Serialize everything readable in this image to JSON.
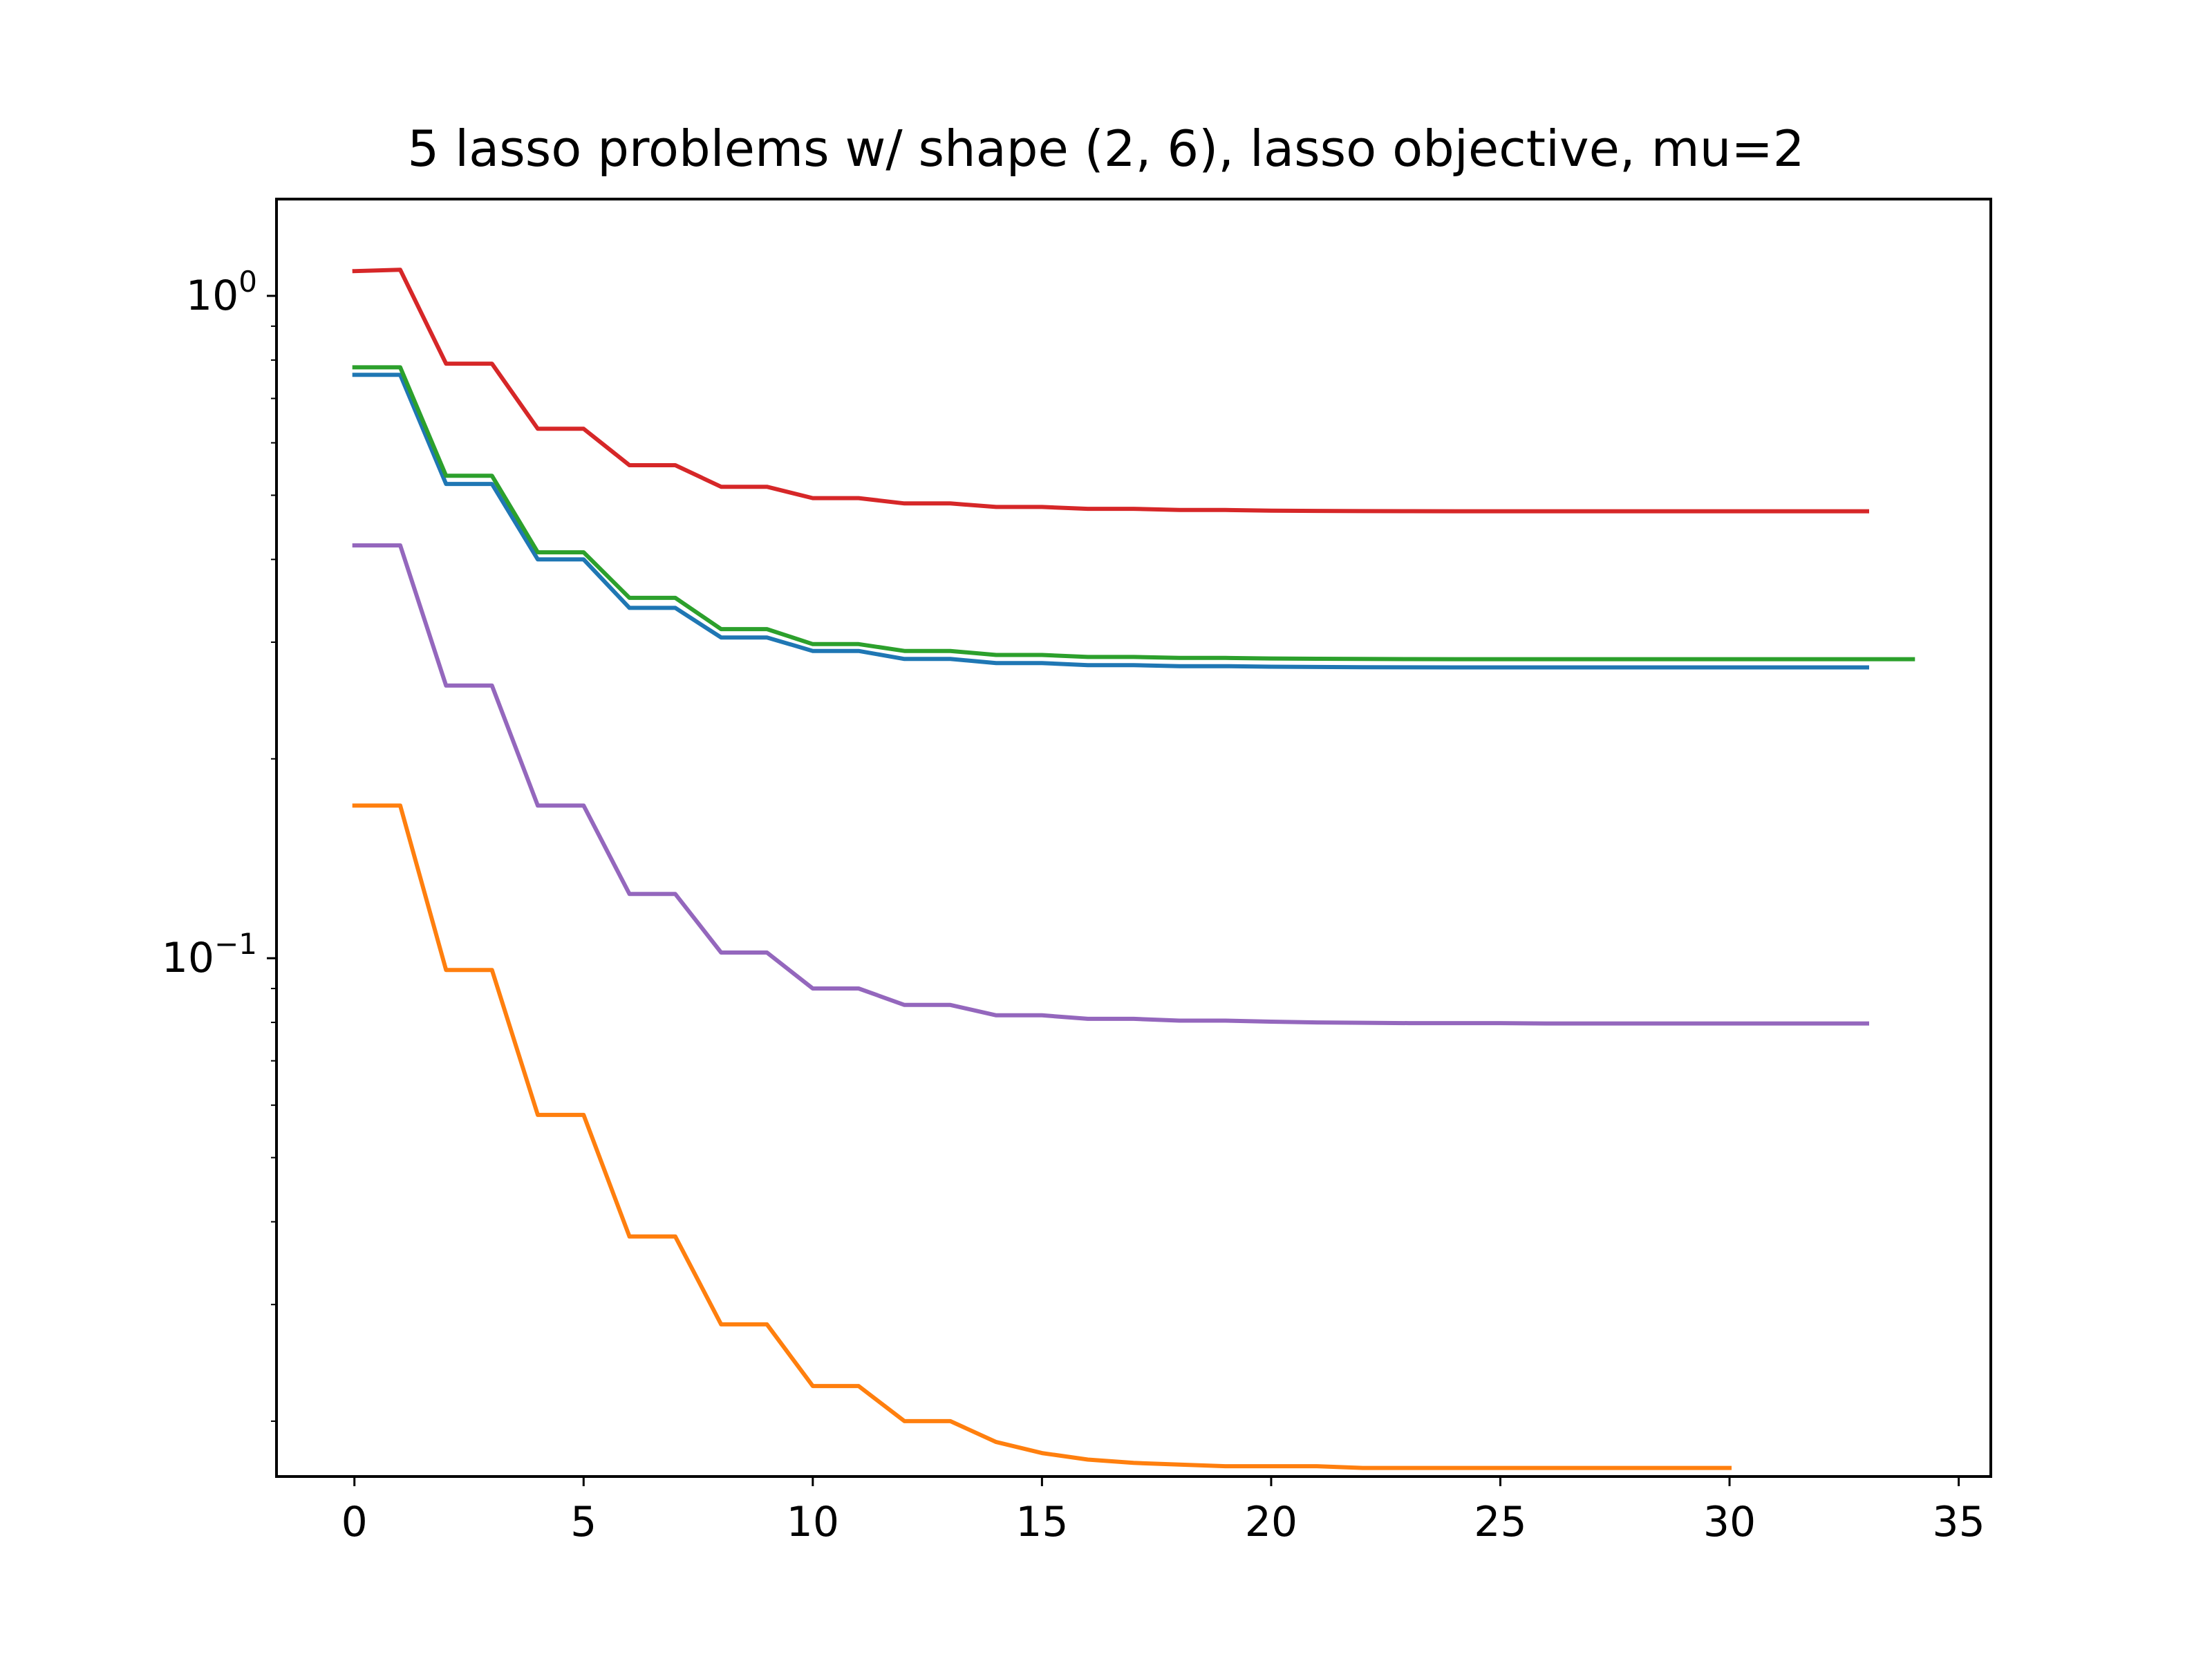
{
  "chart_data": {
    "type": "line",
    "title": "5 lasso problems w/ shape (2, 6), lasso objective, mu=2",
    "xlabel": "",
    "ylabel": "",
    "xlim": [
      -1.7,
      35.7
    ],
    "ylim": [
      0.0165,
      1.4
    ],
    "yscale": "log",
    "grid": false,
    "legend": "none",
    "x_ticks": [
      0,
      5,
      10,
      15,
      20,
      25,
      30,
      35
    ],
    "x_tick_labels": [
      "0",
      "5",
      "10",
      "15",
      "20",
      "25",
      "30",
      "35"
    ],
    "y_major_ticks": [
      {
        "value": 1,
        "base": "10",
        "exponent": "0"
      },
      {
        "value": 0.1,
        "base": "10",
        "exponent": "−1"
      }
    ],
    "y_minor_ticks": [
      0.02,
      0.03,
      0.04,
      0.05,
      0.06,
      0.07,
      0.08,
      0.09,
      0.2,
      0.3,
      0.4,
      0.5,
      0.6,
      0.7,
      0.8,
      0.9
    ],
    "series": [
      {
        "color": "#1f77b4",
        "values": [
          0.76,
          0.76,
          0.52,
          0.52,
          0.4,
          0.4,
          0.338,
          0.338,
          0.305,
          0.305,
          0.291,
          0.291,
          0.283,
          0.283,
          0.279,
          0.279,
          0.277,
          0.277,
          0.276,
          0.276,
          0.2755,
          0.2752,
          0.275,
          0.2749,
          0.2748,
          0.2748,
          0.2748,
          0.2748,
          0.2748,
          0.2748,
          0.2748,
          0.2748,
          0.2748,
          0.2748
        ]
      },
      {
        "color": "#ff7f0e",
        "values": [
          0.17,
          0.17,
          0.096,
          0.096,
          0.058,
          0.058,
          0.038,
          0.038,
          0.028,
          0.028,
          0.0226,
          0.0226,
          0.02,
          0.02,
          0.0186,
          0.0179,
          0.0175,
          0.0173,
          0.0172,
          0.0171,
          0.0171,
          0.0171,
          0.017,
          0.017,
          0.017,
          0.017,
          0.017,
          0.017,
          0.017,
          0.017,
          0.017
        ]
      },
      {
        "color": "#2ca02c",
        "values": [
          0.78,
          0.78,
          0.535,
          0.535,
          0.41,
          0.41,
          0.35,
          0.35,
          0.314,
          0.314,
          0.298,
          0.298,
          0.291,
          0.291,
          0.287,
          0.287,
          0.285,
          0.285,
          0.284,
          0.284,
          0.2835,
          0.2832,
          0.283,
          0.2829,
          0.2828,
          0.2828,
          0.2828,
          0.2828,
          0.2828,
          0.2828,
          0.2828,
          0.2828,
          0.2828,
          0.2828,
          0.2828
        ]
      },
      {
        "color": "#d62728",
        "values": [
          1.09,
          1.095,
          0.79,
          0.79,
          0.63,
          0.63,
          0.555,
          0.555,
          0.515,
          0.515,
          0.495,
          0.495,
          0.486,
          0.486,
          0.48,
          0.48,
          0.477,
          0.477,
          0.475,
          0.475,
          0.474,
          0.4735,
          0.4732,
          0.4731,
          0.473,
          0.473,
          0.473,
          0.473,
          0.473,
          0.473,
          0.473,
          0.473,
          0.473,
          0.473
        ]
      },
      {
        "color": "#9467bd",
        "values": [
          0.42,
          0.42,
          0.258,
          0.258,
          0.17,
          0.17,
          0.125,
          0.125,
          0.102,
          0.102,
          0.09,
          0.09,
          0.085,
          0.085,
          0.082,
          0.082,
          0.081,
          0.081,
          0.0805,
          0.0805,
          0.0802,
          0.08,
          0.0799,
          0.0798,
          0.0798,
          0.0798,
          0.0797,
          0.0797,
          0.0797,
          0.0797,
          0.0797,
          0.0797,
          0.0797,
          0.0797
        ]
      }
    ]
  }
}
